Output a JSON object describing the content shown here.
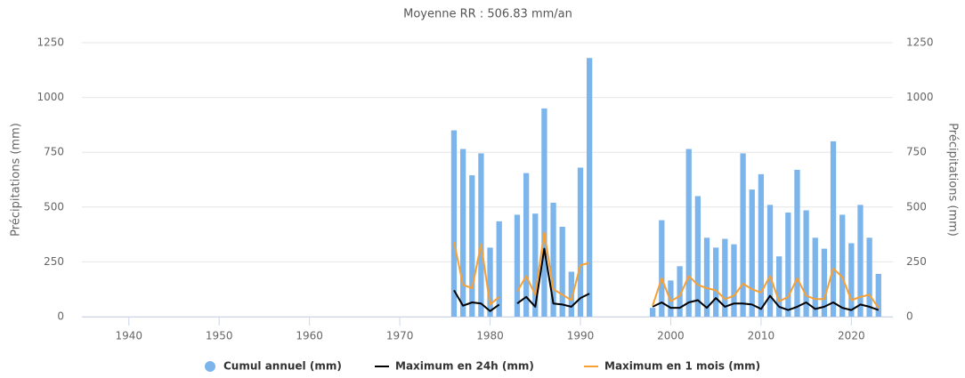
{
  "chart_data": {
    "type": "bar-line",
    "title": "Moyenne RR : 506.83 mm/an",
    "ylabel": "Précipitations (mm)",
    "y2label": "Précipitations (mm)",
    "x": [
      1976,
      1977,
      1978,
      1979,
      1980,
      1981,
      1982,
      1983,
      1984,
      1985,
      1986,
      1987,
      1988,
      1989,
      1990,
      1991,
      1992,
      1993,
      1994,
      1995,
      1996,
      1997,
      1998,
      1999,
      2000,
      2001,
      2002,
      2003,
      2004,
      2005,
      2006,
      2007,
      2008,
      2009,
      2010,
      2011,
      2012,
      2013,
      2014,
      2015,
      2016,
      2017,
      2018,
      2019,
      2020,
      2021,
      2022,
      2023
    ],
    "series": [
      {
        "name": "Cumul annuel (mm)",
        "kind": "bar",
        "color": "#7cb5ec",
        "values": [
          850,
          765,
          645,
          745,
          315,
          435,
          null,
          465,
          655,
          470,
          950,
          520,
          410,
          205,
          680,
          1180,
          null,
          null,
          null,
          null,
          null,
          null,
          40,
          440,
          165,
          230,
          765,
          550,
          360,
          315,
          355,
          330,
          745,
          580,
          650,
          510,
          275,
          475,
          670,
          485,
          360,
          310,
          800,
          465,
          335,
          510,
          360,
          195
        ]
      },
      {
        "name": "Maximum en 24h (mm)",
        "kind": "line",
        "color": "#000000",
        "values": [
          120,
          50,
          65,
          60,
          25,
          55,
          null,
          60,
          90,
          45,
          310,
          60,
          55,
          45,
          85,
          105,
          null,
          null,
          null,
          null,
          null,
          null,
          45,
          65,
          40,
          40,
          65,
          75,
          40,
          85,
          45,
          60,
          60,
          55,
          35,
          95,
          45,
          30,
          45,
          65,
          35,
          45,
          65,
          40,
          30,
          55,
          45,
          30
        ]
      },
      {
        "name": "Maximum en 1 mois (mm)",
        "kind": "line",
        "color": "#f7a035",
        "values": [
          340,
          145,
          130,
          330,
          55,
          90,
          null,
          115,
          185,
          100,
          385,
          125,
          100,
          75,
          235,
          245,
          null,
          null,
          null,
          null,
          null,
          null,
          50,
          175,
          70,
          95,
          185,
          145,
          130,
          120,
          80,
          95,
          150,
          125,
          110,
          185,
          70,
          90,
          175,
          95,
          80,
          80,
          220,
          180,
          75,
          90,
          100,
          40
        ]
      }
    ],
    "xlim": [
      1934.8,
      2024.6
    ],
    "xticks": [
      1940,
      1950,
      1960,
      1970,
      1980,
      1990,
      2000,
      2010,
      2020
    ],
    "ylim": [
      0,
      1250
    ],
    "yticks": [
      0,
      250,
      500,
      750,
      1000,
      1250
    ],
    "y2lim": [
      0,
      1250
    ],
    "y2ticks": [
      0,
      250,
      500,
      750,
      1000,
      1250
    ],
    "grid": true,
    "legend": "bottom"
  }
}
